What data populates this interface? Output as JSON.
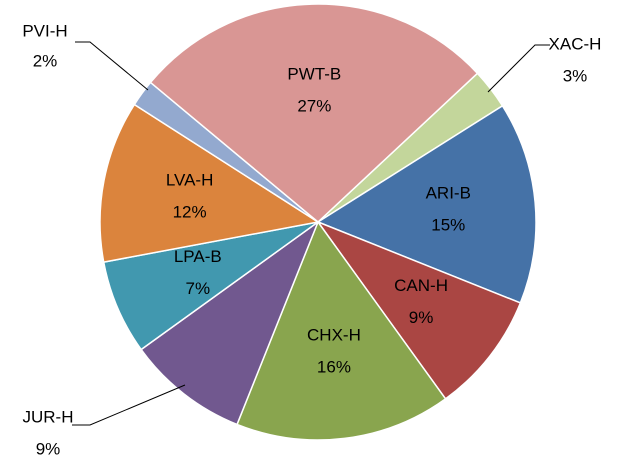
{
  "chart_data": {
    "type": "pie",
    "categories": [
      "XAC-H",
      "ARI-B",
      "CAN-H",
      "CHX-H",
      "JUR-H",
      "LPA-B",
      "LVA-H",
      "PVI-H",
      "PWT-B"
    ],
    "values": [
      3,
      15,
      9,
      16,
      9,
      7,
      12,
      2,
      27
    ],
    "value_labels": [
      "3%",
      "15%",
      "9%",
      "16%",
      "9%",
      "7%",
      "12%",
      "2%",
      "27%"
    ],
    "colors": [
      "#c3d69b",
      "#4572a7",
      "#aa4643",
      "#89a54e",
      "#71588f",
      "#4198af",
      "#db843d",
      "#93a9cf",
      "#d99694"
    ]
  }
}
